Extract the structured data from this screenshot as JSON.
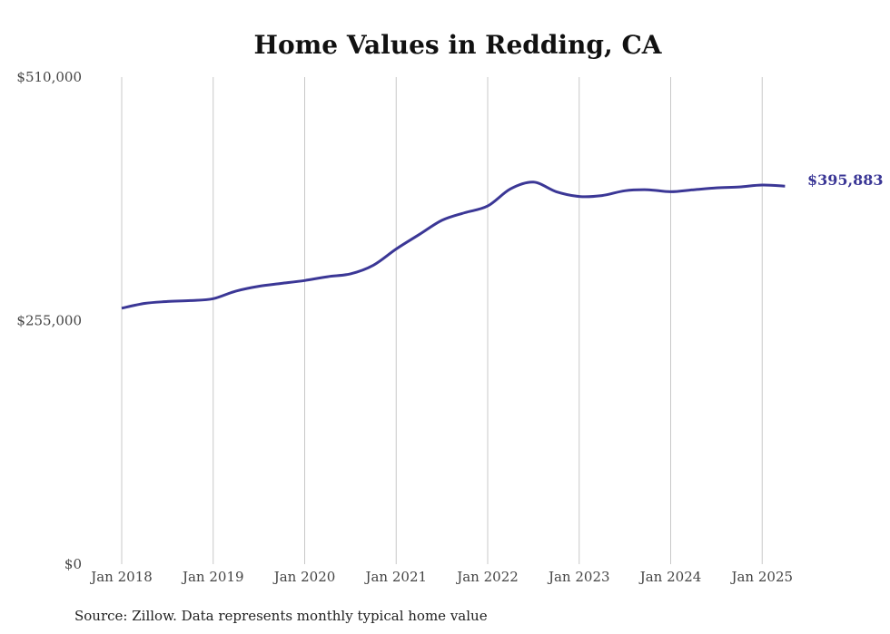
{
  "chart_data": {
    "type": "line",
    "title": "Home Values in Redding, CA",
    "xlabel": "",
    "ylabel": "",
    "ylim": [
      0,
      510000
    ],
    "y_ticks": [
      "$0",
      "$255,000",
      "$510,000"
    ],
    "y_tick_values": [
      0,
      255000,
      510000
    ],
    "x_ticks": [
      "Jan 2018",
      "Jan 2019",
      "Jan 2020",
      "Jan 2021",
      "Jan 2022",
      "Jan 2023",
      "Jan 2024",
      "Jan 2025"
    ],
    "grid": "vertical",
    "line_color": "#3b3796",
    "end_label": "$395,883",
    "series": [
      {
        "x": [
          "2018-01",
          "2018-04",
          "2018-07",
          "2018-10",
          "2019-01",
          "2019-04",
          "2019-07",
          "2019-10",
          "2020-01",
          "2020-04",
          "2020-07",
          "2020-10",
          "2021-01",
          "2021-04",
          "2021-07",
          "2021-10",
          "2022-01",
          "2022-04",
          "2022-07",
          "2022-10",
          "2023-01",
          "2023-04",
          "2023-07",
          "2023-10",
          "2024-01",
          "2024-04",
          "2024-07",
          "2024-10",
          "2025-01",
          "2025-04"
        ],
        "values": [
          268000,
          273000,
          275000,
          276000,
          278000,
          286000,
          291000,
          294000,
          297000,
          301000,
          304000,
          313000,
          330000,
          345000,
          360000,
          368000,
          375000,
          393000,
          400000,
          390000,
          385000,
          386000,
          391000,
          392000,
          390000,
          392000,
          394000,
          395000,
          397000,
          395883
        ]
      }
    ]
  },
  "source_note": "Source: Zillow. Data represents monthly typical home value"
}
